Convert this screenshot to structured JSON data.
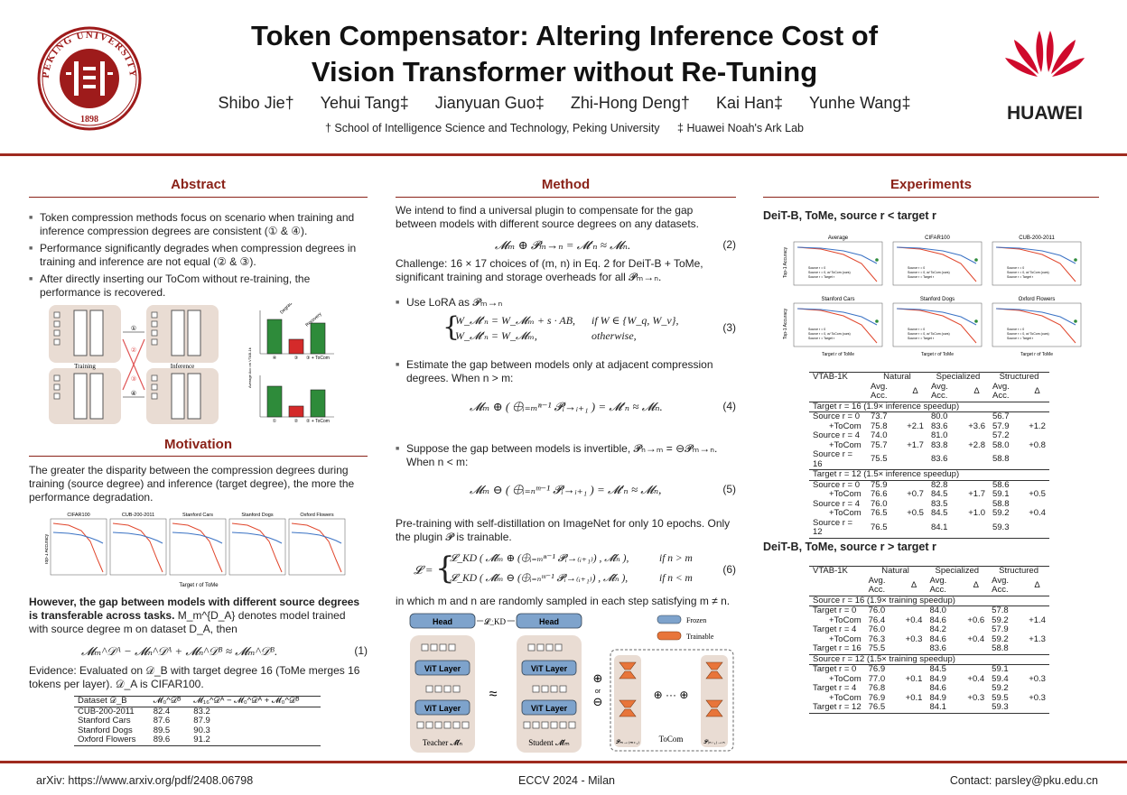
{
  "header": {
    "title_line1": "Token Compensator: Altering Inference Cost of",
    "title_line2": "Vision Transformer without Re-Tuning",
    "authors": [
      "Shibo Jie†",
      "Yehui Tang‡",
      "Jianyuan Guo‡",
      "Zhi-Hong Deng†",
      "Kai Han‡",
      "Yunhe Wang‡"
    ],
    "affil1": "† School of Intelligence Science and Technology, Peking University",
    "affil2": "‡ Huawei Noah's Ark Lab",
    "pku_text": "PEKING UNIVERSITY",
    "pku_year": "1898",
    "huawei_text": "HUAWEI",
    "colors": {
      "accent": "#9e2a1f",
      "huawei_red": "#cf0a2c"
    }
  },
  "abstract": {
    "title": "Abstract",
    "bullets": [
      "Token compression methods focus on scenario when training and inference compression degrees are consistent (① & ④).",
      "Performance significantly degrades when compression degrees in training and inference are not equal (② & ③).",
      "After directly inserting our ToCom without re-training, the performance is recovered."
    ],
    "fig": {
      "training": "Training",
      "inference": "Inference",
      "vit": "ViT Layer",
      "tocom": "ToCom",
      "degrade": "Degradation",
      "recovery": "Recovery",
      "ylabel": "Average Acc on VTAB-1k",
      "marks": [
        "①",
        "②",
        "③",
        "④"
      ],
      "bar_labels_top": [
        "④",
        "③",
        "③ + ToCom"
      ],
      "bar_labels_bottom": [
        "①",
        "②",
        "② + ToCom"
      ]
    }
  },
  "motivation": {
    "title": "Motivation",
    "p1": "The greater the disparity between the compression degrees during training (source degree) and inference (target degree), the more the performance degradation.",
    "p2_bold": "However, the gap between models with different source degrees is transferable across tasks.",
    "p2_rest": "M_m^{D_A} denotes model trained with source degree m on dataset D_A, then",
    "eq1": "𝓜ₘ^𝒟ᴬ − 𝓜ₙ^𝒟ᴬ + 𝓜ₙ^𝒟ᴮ ≈ 𝓜ₘ^𝒟ᴮ.",
    "eq1_num": "(1)",
    "evidence": "Evidence: Evaluated on 𝒟_B with target degree 16 (ToMe merges 16 tokens per layer). 𝒟_A is CIFAR100.",
    "plots": [
      "CIFAR100",
      "CUB-200-2011",
      "Stanford Cars",
      "Stanford Dogs",
      "Oxford Flowers"
    ],
    "plot_xlabel": "Target r of ToMe",
    "plot_ylabel": "Top-1 Accuracy",
    "table": {
      "headers": [
        "Dataset 𝒟_B",
        "𝓜₀^𝒟ᴮ",
        "𝓜₁₆^𝒟ᴬ − 𝓜₀^𝒟ᴬ + 𝓜₀^𝒟ᴮ"
      ],
      "rows": [
        [
          "CUB-200-2011",
          "82.4",
          "83.2"
        ],
        [
          "Stanford Cars",
          "87.6",
          "87.9"
        ],
        [
          "Stanford Dogs",
          "89.5",
          "90.3"
        ],
        [
          "Oxford Flowers",
          "89.6",
          "91.2"
        ]
      ]
    }
  },
  "method": {
    "title": "Method",
    "intro": "We intend to find a universal plugin to compensate for the gap between models with different source degrees on any datasets.",
    "eq2": "𝓜ₘ ⊕ 𝓟ₘ→ₙ = 𝓜′ₙ ≈ 𝓜ₙ.",
    "eq2_num": "(2)",
    "challenge": "Challenge: 16 × 17 choices of (m, n) in Eq. 2 for DeiT-B + ToMe, significant training and storage overheads for all 𝓟ₘ→ₙ.",
    "b1": "Use LoRA as 𝓟ₘ→ₙ",
    "eq3_a": "W_𝓜′ₙ = W_𝓜ₘ + s · AB,",
    "eq3_a_cond": "if W ∈ {W_q, W_v},",
    "eq3_b": "W_𝓜′ₙ = W_𝓜ₘ,",
    "eq3_b_cond": "otherwise,",
    "eq3_num": "(3)",
    "b2": "Estimate the gap between models only at adjacent compression degrees. When n > m:",
    "eq4": "𝓜ₘ ⊕ ( ⨁ᵢ₌ₘⁿ⁻¹ 𝓟ᵢ→ᵢ₊₁ ) = 𝓜′ₙ ≈ 𝓜ₙ.",
    "eq4_num": "(4)",
    "b3": "Suppose the gap between models is invertible, 𝓟ₙ→ₘ = ⊖𝓟ₘ→ₙ. When n < m:",
    "eq5": "𝓜ₘ ⊖ ( ⨁ᵢ₌ₙᵐ⁻¹ 𝓟ᵢ→ᵢ₊₁ ) = 𝓜′ₙ ≈ 𝓜ₙ,",
    "eq5_num": "(5)",
    "pretrain": "Pre-training with self-distillation on ImageNet for only 10 epochs. Only the plugin 𝓟 is trainable.",
    "eq6_a": "𝓛_KD ( 𝓜̂ₘ ⊕ (⨁ᵢ₌ₘⁿ⁻¹ 𝓟ᵢ→₍ᵢ₊₁₎) , 𝓜̂ₙ ),",
    "eq6_a_cond": "if n > m",
    "eq6_b": "𝓛_KD ( 𝓜̂ₘ ⊖ (⨁ᵢ₌ₙᵐ⁻¹ 𝓟ᵢ→₍ᵢ₊₁₎) , 𝓜̂ₙ ),",
    "eq6_b_cond": "if n < m",
    "eq6_lhs": "𝓛 =",
    "eq6_num": "(6)",
    "sampling": "in which m and n are randomly sampled in each step satisfying m ≠ n.",
    "diagram": {
      "head": "Head",
      "lkd": "𝓛_KD",
      "vit": "ViT Layer",
      "teacher": "Teacher 𝓜̂ₙ",
      "student": "Student 𝓜̂ₘ",
      "approx": "≈",
      "or": "or",
      "oplus": "⊕",
      "ominus": "⊖",
      "frozen": "Frozen",
      "trainable": "Trainable",
      "tocom": "ToCom",
      "p_left": "𝓟ₘ→₍ₘ₊₁₎",
      "p_right": "𝓟₍ₙ₋₁₎→ₙ",
      "dots": "⊕ ··· ⊕",
      "frozen_color": "#7ea3cc",
      "trainable_color": "#e8753a"
    }
  },
  "experiments": {
    "title": "Experiments",
    "sub1": "DeiT-B, ToMe, source r < target r",
    "sub2": "DeiT-B, ToMe, source r > target r",
    "plots": [
      "Average",
      "CIFAR100",
      "CUB-200-2011",
      "Stanford Cars",
      "Stanford Dogs",
      "Oxford Flowers"
    ],
    "plot_legend": [
      "Source r = 0",
      "Source r = 0, w/ ToCom (ours)",
      "Source r = Target r"
    ],
    "plot_xlabel": "Target r of ToMe",
    "plot_ylabel": "Top-1 Accuracy",
    "table_head": {
      "col0": "VTAB-1K",
      "groups": [
        "Natural",
        "Specialized",
        "Structured"
      ],
      "avg": "Avg. Acc.",
      "delta": "Δ"
    },
    "table1": {
      "sections": [
        {
          "label": "Target r = 16 (1.9× inference speedup)",
          "rows": [
            [
              "Source r = 0",
              "73.7",
              "",
              "80.0",
              "",
              "56.7",
              ""
            ],
            [
              "+ToCom",
              "75.8",
              "+2.1",
              "83.6",
              "+3.6",
              "57.9",
              "+1.2"
            ],
            [
              "Source r = 4",
              "74.0",
              "",
              "81.0",
              "",
              "57.2",
              ""
            ],
            [
              "+ToCom",
              "75.7",
              "+1.7",
              "83.8",
              "+2.8",
              "58.0",
              "+0.8"
            ],
            [
              "Source r = 16",
              "75.5",
              "",
              "83.6",
              "",
              "58.8",
              ""
            ]
          ]
        },
        {
          "label": "Target r = 12 (1.5× inference speedup)",
          "rows": [
            [
              "Source r = 0",
              "75.9",
              "",
              "82.8",
              "",
              "58.6",
              ""
            ],
            [
              "+ToCom",
              "76.6",
              "+0.7",
              "84.5",
              "+1.7",
              "59.1",
              "+0.5"
            ],
            [
              "Source r = 4",
              "76.0",
              "",
              "83.5",
              "",
              "58.8",
              ""
            ],
            [
              "+ToCom",
              "76.5",
              "+0.5",
              "84.5",
              "+1.0",
              "59.2",
              "+0.4"
            ],
            [
              "Source r = 12",
              "76.5",
              "",
              "84.1",
              "",
              "59.3",
              ""
            ]
          ]
        }
      ]
    },
    "table2": {
      "sections": [
        {
          "label": "Source r = 16 (1.9× training speedup)",
          "rows": [
            [
              "Target r = 0",
              "76.0",
              "",
              "84.0",
              "",
              "57.8",
              ""
            ],
            [
              "+ToCom",
              "76.4",
              "+0.4",
              "84.6",
              "+0.6",
              "59.2",
              "+1.4"
            ],
            [
              "Target r = 4",
              "76.0",
              "",
              "84.2",
              "",
              "57.9",
              ""
            ],
            [
              "+ToCom",
              "76.3",
              "+0.3",
              "84.6",
              "+0.4",
              "59.2",
              "+1.3"
            ],
            [
              "Target r = 16",
              "75.5",
              "",
              "83.6",
              "",
              "58.8",
              ""
            ]
          ]
        },
        {
          "label": "Source r = 12 (1.5× training speedup)",
          "rows": [
            [
              "Target r = 0",
              "76.9",
              "",
              "84.5",
              "",
              "59.1",
              ""
            ],
            [
              "+ToCom",
              "77.0",
              "+0.1",
              "84.9",
              "+0.4",
              "59.4",
              "+0.3"
            ],
            [
              "Target r = 4",
              "76.8",
              "",
              "84.6",
              "",
              "59.2",
              ""
            ],
            [
              "+ToCom",
              "76.9",
              "+0.1",
              "84.9",
              "+0.3",
              "59.5",
              "+0.3"
            ],
            [
              "Target r = 12",
              "76.5",
              "",
              "84.1",
              "",
              "59.3",
              ""
            ]
          ]
        }
      ]
    }
  },
  "footer": {
    "arxiv": "arXiv: https://www.arxiv.org/pdf/2408.06798",
    "venue": "ECCV 2024 - Milan",
    "contact": "Contact: parsley@pku.edu.cn"
  }
}
